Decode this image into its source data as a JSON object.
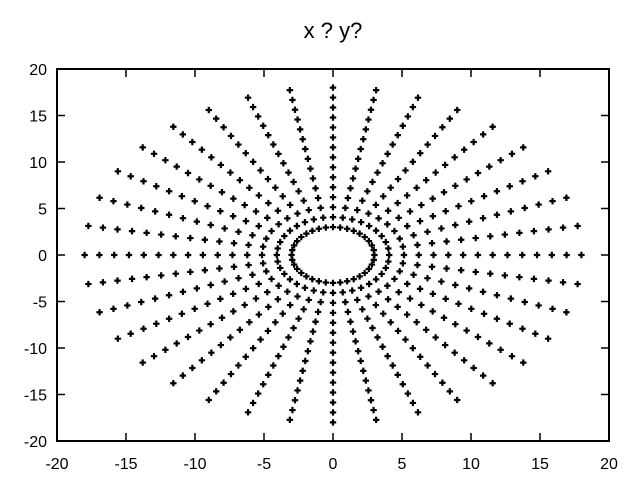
{
  "chart_data": {
    "type": "scatter",
    "title": "x ? y?",
    "xlabel": "",
    "ylabel": "",
    "xlim": [
      -20,
      20
    ],
    "ylim": [
      -20,
      20
    ],
    "xticks": [
      -20,
      -15,
      -10,
      -5,
      0,
      5,
      10,
      15,
      20
    ],
    "yticks": [
      -20,
      -15,
      -10,
      -5,
      0,
      5,
      10,
      15,
      20
    ],
    "grid": false,
    "legend": "none",
    "marker": "plus",
    "marker_color": "#000000",
    "pattern": {
      "description_of_data": "radial spokes of points around an ellipse",
      "spokes": 36,
      "angle_step_deg": 10,
      "points_per_spoke": 15,
      "radius_start": 1.0,
      "radius_end": 6.0,
      "x_semi_axis_factor": 3.0,
      "y_semi_axis_factor": 3.0
    }
  }
}
